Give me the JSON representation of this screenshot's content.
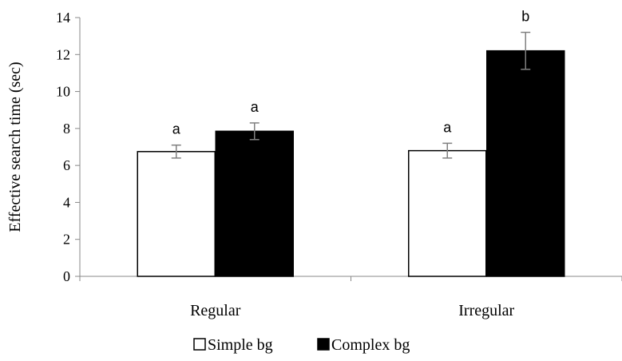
{
  "chart_data": {
    "type": "bar",
    "title": "",
    "xlabel": "",
    "ylabel": "Effective search time (sec)",
    "ylim": [
      0,
      14
    ],
    "yticks": [
      0,
      2,
      4,
      6,
      8,
      10,
      12,
      14
    ],
    "grid": false,
    "legend_position": "bottom",
    "categories": [
      "Regular",
      "Irregular"
    ],
    "series": [
      {
        "name": "Simple bg",
        "fill": "#ffffff",
        "stroke": "#000000",
        "values": [
          6.75,
          6.8
        ],
        "errors": [
          0.35,
          0.4
        ],
        "significance": [
          "a",
          "a"
        ]
      },
      {
        "name": "Complex bg",
        "fill": "#000000",
        "stroke": "#000000",
        "values": [
          7.85,
          12.2
        ],
        "errors": [
          0.45,
          1.0
        ],
        "significance": [
          "a",
          "b"
        ]
      }
    ]
  }
}
